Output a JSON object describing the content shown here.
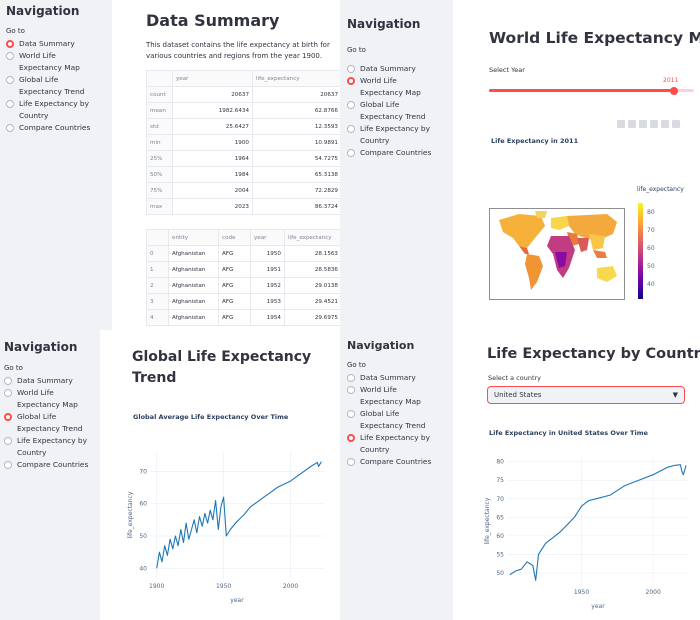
{
  "nav": {
    "title": "Navigation",
    "goto": "Go to",
    "options": [
      "Data Summary",
      "World Life Expectancy Map",
      "Global Life Expectancy Trend",
      "Life Expectancy by Country",
      "Compare Countries"
    ]
  },
  "summary": {
    "title": "Data Summary",
    "intro": "This dataset contains the life expectancy at birth for various countries and regions from the year 1900.",
    "stats_columns": [
      "",
      "year",
      "life_expectancy"
    ],
    "stats_rows": [
      [
        "count",
        "20637",
        "20637"
      ],
      [
        "mean",
        "1982.6434",
        "62.8766"
      ],
      [
        "std",
        "25.6427",
        "12.3593"
      ],
      [
        "min",
        "1900",
        "10.9891"
      ],
      [
        "25%",
        "1964",
        "54.7275"
      ],
      [
        "50%",
        "1984",
        "65.3138"
      ],
      [
        "75%",
        "2004",
        "72.2829"
      ],
      [
        "max",
        "2023",
        "86.3724"
      ]
    ],
    "data_columns": [
      "",
      "entity",
      "code",
      "year",
      "life_expectancy"
    ],
    "data_rows": [
      [
        "0",
        "Afghanistan",
        "AFG",
        "1950",
        "28.1563"
      ],
      [
        "1",
        "Afghanistan",
        "AFG",
        "1951",
        "28.5836"
      ],
      [
        "2",
        "Afghanistan",
        "AFG",
        "1952",
        "29.0138"
      ],
      [
        "3",
        "Afghanistan",
        "AFG",
        "1953",
        "29.4521"
      ],
      [
        "4",
        "Afghanistan",
        "AFG",
        "1954",
        "29.6975"
      ]
    ]
  },
  "map": {
    "title": "World Life Expectancy Map",
    "slider_label": "Select Year",
    "slider_value": "2011",
    "slider_fraction": 0.9,
    "chart_title": "Life Expectancy in 2011",
    "colorbar_title": "life_expectancy",
    "colorbar_ticks": [
      "80",
      "70",
      "60",
      "50",
      "40"
    ]
  },
  "trend": {
    "title_line1": "Global Life Expectancy",
    "title_line2": "Trend",
    "chart_title": "Global Average Life Expectancy Over Time"
  },
  "country": {
    "title": "Life Expectancy by Country",
    "select_label": "Select a country",
    "select_value": "United States",
    "chart_title": "Life Expectancy in United States Over Time"
  },
  "chart_data": [
    {
      "type": "line",
      "title": "Global Average Life Expectancy Over Time",
      "xlabel": "year",
      "ylabel": "life_expectancy",
      "xlim": [
        1895,
        2025
      ],
      "ylim": [
        37,
        76
      ],
      "xticks": [
        1900,
        1950,
        2000
      ],
      "yticks": [
        40,
        50,
        60,
        70
      ],
      "x": [
        1900,
        1902,
        1904,
        1906,
        1908,
        1910,
        1912,
        1914,
        1916,
        1918,
        1920,
        1922,
        1924,
        1926,
        1928,
        1930,
        1932,
        1934,
        1936,
        1938,
        1940,
        1942,
        1944,
        1946,
        1948,
        1950,
        1952,
        1955,
        1960,
        1965,
        1970,
        1975,
        1980,
        1985,
        1990,
        1995,
        2000,
        2005,
        2010,
        2015,
        2019,
        2020,
        2021,
        2023
      ],
      "y": [
        40,
        45,
        42,
        47,
        44,
        49,
        46,
        50,
        47,
        52,
        48,
        54,
        49,
        52,
        55,
        51,
        56,
        53,
        57,
        54,
        58,
        55,
        61,
        52,
        59,
        62,
        50,
        52,
        54.5,
        56.5,
        59,
        60.5,
        62,
        63.5,
        65,
        66,
        67,
        68.5,
        70,
        71.5,
        72.5,
        72.8,
        71.5,
        73
      ]
    },
    {
      "type": "line",
      "title": "Life Expectancy in United States Over Time",
      "xlabel": "year",
      "ylabel": "life_expectancy",
      "xlim": [
        1898,
        2025
      ],
      "ylim": [
        47,
        81
      ],
      "xticks": [
        1950,
        2000
      ],
      "yticks": [
        50,
        55,
        60,
        65,
        70,
        75,
        80
      ],
      "x": [
        1900,
        1904,
        1908,
        1912,
        1916,
        1918,
        1920,
        1925,
        1930,
        1935,
        1940,
        1945,
        1950,
        1955,
        1960,
        1970,
        1980,
        1990,
        2000,
        2005,
        2010,
        2015,
        2019,
        2020,
        2021,
        2023
      ],
      "y": [
        49.5,
        50.5,
        51,
        53,
        52,
        48,
        55,
        58,
        59.5,
        61,
        63,
        65,
        68,
        69.5,
        70,
        71,
        73.5,
        75,
        76.5,
        77.5,
        78.5,
        79,
        79.2,
        77.5,
        76.5,
        79
      ]
    }
  ]
}
